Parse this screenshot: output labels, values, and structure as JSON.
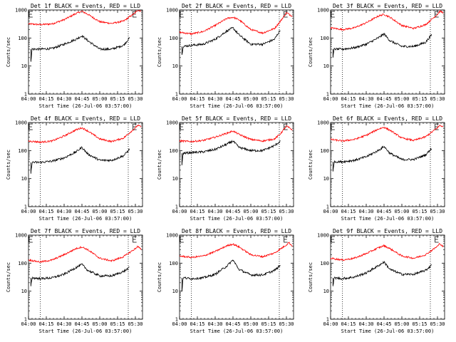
{
  "chart_data": [
    {
      "type": "line",
      "title": "Det 1f BLACK = Events, RED = LLD",
      "xlabel": "Start Time (26-Jul-06 03:57:00)",
      "ylabel": "Counts/sec",
      "x_ticks": [
        "04:00",
        "04:15",
        "04:30",
        "04:45",
        "05:00",
        "05:15",
        "05:30"
      ],
      "y_ticks": [
        "1",
        "10",
        "100",
        "1000"
      ],
      "series": [
        {
          "name": "LLD",
          "color": "#ff0000",
          "x": [
            0,
            10,
            20,
            30,
            40,
            45,
            50,
            60,
            70,
            80,
            90,
            92,
            95
          ],
          "y": [
            320,
            300,
            320,
            450,
            750,
            900,
            700,
            380,
            330,
            400,
            800,
            1000,
            900
          ]
        },
        {
          "name": "Events",
          "color": "#000000",
          "x": [
            2,
            3,
            10,
            20,
            30,
            40,
            45,
            50,
            60,
            70,
            80,
            85
          ],
          "y": [
            15,
            40,
            40,
            42,
            60,
            90,
            120,
            80,
            40,
            40,
            55,
            100
          ]
        }
      ]
    },
    {
      "type": "line",
      "title": "Det 2f BLACK = Events, RED = LLD",
      "xlabel": "Start Time (26-Jul-06 03:57:00)",
      "ylabel": "Counts/sec",
      "x_ticks": [
        "04:00",
        "04:15",
        "04:30",
        "04:45",
        "05:00",
        "05:15",
        "05:30"
      ],
      "y_ticks": [
        "1",
        "10",
        "100",
        "1000"
      ],
      "series": [
        {
          "name": "LLD",
          "color": "#ff0000",
          "x": [
            0,
            10,
            20,
            30,
            40,
            45,
            50,
            60,
            70,
            80,
            85,
            90,
            95
          ],
          "y": [
            160,
            140,
            170,
            280,
            500,
            550,
            450,
            200,
            150,
            220,
            400,
            800,
            600
          ]
        },
        {
          "name": "Events",
          "color": "#000000",
          "x": [
            2,
            3,
            10,
            20,
            30,
            40,
            45,
            50,
            60,
            70,
            80,
            85
          ],
          "y": [
            25,
            50,
            55,
            60,
            90,
            180,
            230,
            130,
            60,
            60,
            90,
            200
          ]
        }
      ]
    },
    {
      "type": "line",
      "title": "Det 3f BLACK = Events, RED = LLD",
      "xlabel": "Start Time (26-Jul-06 03:57:00)",
      "ylabel": "Counts/sec",
      "x_ticks": [
        "04:00",
        "04:15",
        "04:30",
        "04:45",
        "05:00",
        "05:15",
        "05:30"
      ],
      "y_ticks": [
        "1",
        "10",
        "100",
        "1000"
      ],
      "series": [
        {
          "name": "LLD",
          "color": "#ff0000",
          "x": [
            0,
            10,
            20,
            30,
            40,
            45,
            50,
            60,
            70,
            80,
            90,
            92,
            95
          ],
          "y": [
            230,
            200,
            230,
            350,
            600,
            700,
            550,
            280,
            220,
            300,
            700,
            900,
            800
          ]
        },
        {
          "name": "Events",
          "color": "#000000",
          "x": [
            2,
            3,
            10,
            20,
            30,
            40,
            45,
            50,
            60,
            70,
            80,
            85
          ],
          "y": [
            20,
            40,
            40,
            45,
            60,
            100,
            140,
            80,
            50,
            50,
            70,
            130
          ]
        }
      ]
    },
    {
      "type": "line",
      "title": "Det 4f BLACK = Events, RED = LLD",
      "xlabel": "Start Time (26-Jul-06 03:57:00)",
      "ylabel": "Counts/sec",
      "x_ticks": [
        "04:00",
        "04:15",
        "04:30",
        "04:45",
        "05:00",
        "05:15",
        "05:30"
      ],
      "y_ticks": [
        "1",
        "10",
        "100",
        "1000"
      ],
      "series": [
        {
          "name": "LLD",
          "color": "#ff0000",
          "x": [
            0,
            10,
            20,
            30,
            40,
            45,
            50,
            60,
            70,
            80,
            90,
            92,
            95
          ],
          "y": [
            220,
            200,
            220,
            330,
            550,
            650,
            500,
            260,
            210,
            280,
            650,
            800,
            700
          ]
        },
        {
          "name": "Events",
          "color": "#000000",
          "x": [
            2,
            3,
            10,
            20,
            30,
            40,
            45,
            50,
            60,
            70,
            80,
            85
          ],
          "y": [
            15,
            38,
            38,
            42,
            55,
            90,
            130,
            75,
            45,
            45,
            65,
            110
          ]
        }
      ]
    },
    {
      "type": "line",
      "title": "Det 5f BLACK = Events, RED = LLD",
      "xlabel": "Start Time (26-Jul-06 03:57:00)",
      "ylabel": "Counts/sec",
      "x_ticks": [
        "04:00",
        "04:15",
        "04:30",
        "04:45",
        "05:00",
        "05:15",
        "05:30"
      ],
      "y_ticks": [
        "1",
        "10",
        "100",
        "1000"
      ],
      "series": [
        {
          "name": "LLD",
          "color": "#ff0000",
          "x": [
            0,
            10,
            20,
            30,
            40,
            45,
            50,
            60,
            70,
            80,
            85,
            90,
            95
          ],
          "y": [
            220,
            210,
            230,
            300,
            420,
            500,
            380,
            250,
            220,
            260,
            400,
            750,
            550
          ]
        },
        {
          "name": "Events",
          "color": "#000000",
          "x": [
            2,
            3,
            10,
            20,
            30,
            40,
            45,
            50,
            60,
            70,
            80,
            85
          ],
          "y": [
            30,
            80,
            85,
            90,
            110,
            170,
            220,
            130,
            100,
            100,
            150,
            220
          ]
        }
      ]
    },
    {
      "type": "line",
      "title": "Det 6f BLACK = Events, RED = LLD",
      "xlabel": "Start Time (26-Jul-06 03:57:00)",
      "ylabel": "Counts/sec",
      "x_ticks": [
        "04:00",
        "04:15",
        "04:30",
        "04:45",
        "05:00",
        "05:15",
        "05:30"
      ],
      "y_ticks": [
        "1",
        "10",
        "100",
        "1000"
      ],
      "series": [
        {
          "name": "LLD",
          "color": "#ff0000",
          "x": [
            0,
            10,
            20,
            30,
            40,
            45,
            50,
            60,
            70,
            80,
            90,
            92,
            95
          ],
          "y": [
            250,
            220,
            250,
            350,
            580,
            680,
            530,
            280,
            230,
            310,
            650,
            800,
            700
          ]
        },
        {
          "name": "Events",
          "color": "#000000",
          "x": [
            2,
            3,
            10,
            20,
            30,
            40,
            45,
            50,
            60,
            70,
            80,
            85
          ],
          "y": [
            18,
            40,
            40,
            45,
            60,
            100,
            140,
            80,
            48,
            48,
            70,
            120
          ]
        }
      ]
    },
    {
      "type": "line",
      "title": "Det 7f BLACK = Events, RED = LLD",
      "xlabel": "Start Time (26-Jul-06 03:57:00)",
      "ylabel": "Counts/sec",
      "x_ticks": [
        "04:00",
        "04:15",
        "04:30",
        "04:45",
        "05:00",
        "05:15",
        "05:30"
      ],
      "y_ticks": [
        "1",
        "10",
        "100",
        "1000"
      ],
      "series": [
        {
          "name": "LLD",
          "color": "#ff0000",
          "x": [
            0,
            10,
            20,
            30,
            40,
            45,
            50,
            60,
            70,
            80,
            90,
            92,
            95
          ],
          "y": [
            130,
            110,
            130,
            200,
            330,
            380,
            300,
            150,
            120,
            170,
            330,
            400,
            300
          ]
        },
        {
          "name": "Events",
          "color": "#000000",
          "x": [
            2,
            3,
            10,
            20,
            30,
            40,
            45,
            50,
            60,
            70,
            80,
            85
          ],
          "y": [
            15,
            30,
            28,
            30,
            40,
            70,
            90,
            55,
            35,
            35,
            50,
            70
          ]
        }
      ]
    },
    {
      "type": "line",
      "title": "Det 8f BLACK = Events, RED = LLD",
      "xlabel": "Start Time (26-Jul-06 03:57:00)",
      "ylabel": "Counts/sec",
      "x_ticks": [
        "04:00",
        "04:15",
        "04:30",
        "04:45",
        "05:00",
        "05:15",
        "05:30"
      ],
      "y_ticks": [
        "1",
        "10",
        "100",
        "1000"
      ],
      "series": [
        {
          "name": "LLD",
          "color": "#ff0000",
          "x": [
            0,
            10,
            20,
            30,
            40,
            45,
            50,
            60,
            70,
            80,
            90,
            92,
            95
          ],
          "y": [
            180,
            160,
            180,
            260,
            420,
            480,
            380,
            200,
            170,
            230,
            450,
            550,
            400
          ]
        },
        {
          "name": "Events",
          "color": "#000000",
          "x": [
            2,
            3,
            10,
            20,
            30,
            40,
            45,
            50,
            60,
            70,
            80,
            85
          ],
          "y": [
            10,
            30,
            28,
            30,
            40,
            80,
            130,
            60,
            38,
            38,
            55,
            85
          ]
        }
      ]
    },
    {
      "type": "line",
      "title": "Det 9f BLACK = Events, RED = LLD",
      "xlabel": "Start Time (26-Jul-06 03:57:00)",
      "ylabel": "Counts/sec",
      "x_ticks": [
        "04:00",
        "04:15",
        "04:30",
        "04:45",
        "05:00",
        "05:15",
        "05:30"
      ],
      "y_ticks": [
        "1",
        "10",
        "100",
        "1000"
      ],
      "series": [
        {
          "name": "LLD",
          "color": "#ff0000",
          "x": [
            0,
            10,
            20,
            30,
            40,
            45,
            50,
            60,
            70,
            80,
            90,
            92,
            95
          ],
          "y": [
            150,
            130,
            150,
            220,
            350,
            420,
            330,
            180,
            150,
            200,
            400,
            500,
            380
          ]
        },
        {
          "name": "Events",
          "color": "#000000",
          "x": [
            2,
            3,
            10,
            20,
            30,
            40,
            45,
            50,
            60,
            70,
            80,
            85
          ],
          "y": [
            15,
            30,
            28,
            32,
            45,
            80,
            110,
            60,
            40,
            40,
            55,
            85
          ]
        }
      ]
    }
  ]
}
